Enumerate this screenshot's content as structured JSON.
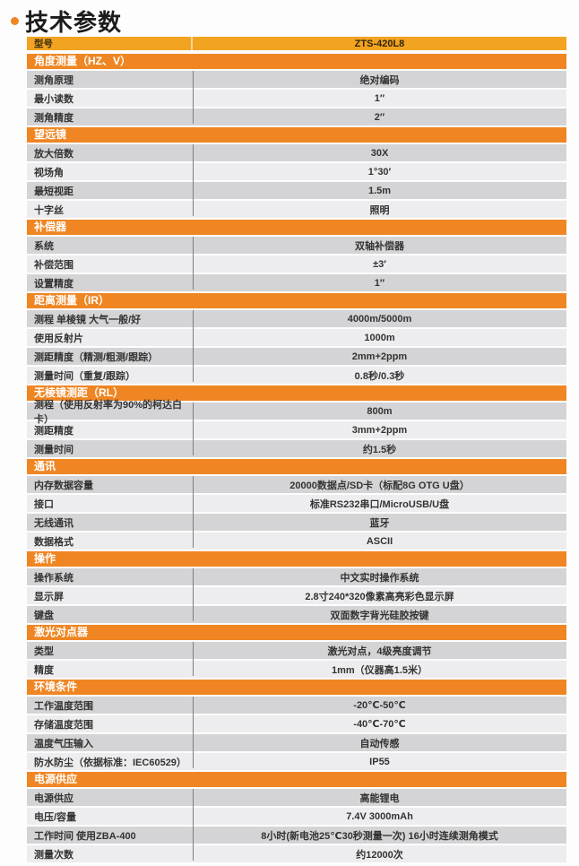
{
  "page": {
    "title": "技术参数"
  },
  "colors": {
    "section_orange": "#EF8623",
    "model_gold": "#F2A320",
    "row_gray": "#D4D4D6",
    "row_light": "#EDEDEF"
  },
  "table": {
    "model_row": {
      "label": "型号",
      "value": "ZTS-420L8"
    },
    "sections": [
      {
        "title": "角度测量（HZ、V）",
        "rows": [
          {
            "label": "测角原理",
            "value": "绝对编码"
          },
          {
            "label": "最小读数",
            "value": "1″"
          },
          {
            "label": "测角精度",
            "value": "2″"
          }
        ]
      },
      {
        "title": "望远镜",
        "rows": [
          {
            "label": "放大倍数",
            "value": "30X"
          },
          {
            "label": "视场角",
            "value": "1°30′"
          },
          {
            "label": "最短视距",
            "value": "1.5m"
          },
          {
            "label": "十字丝",
            "value": "照明"
          }
        ]
      },
      {
        "title": "补偿器",
        "rows": [
          {
            "label": "系统",
            "value": "双轴补偿器"
          },
          {
            "label": "补偿范围",
            "value": "±3′"
          },
          {
            "label": "设置精度",
            "value": "1″"
          }
        ]
      },
      {
        "title": "距离测量（IR）",
        "rows": [
          {
            "label": "测程 单棱镜 大气一般/好",
            "value": "4000m/5000m"
          },
          {
            "label": "使用反射片",
            "value": "1000m"
          },
          {
            "label": "测距精度（精测/粗测/跟踪）",
            "value": "2mm+2ppm"
          },
          {
            "label": "测量时间（重复/跟踪）",
            "value": "0.8秒/0.3秒"
          }
        ]
      },
      {
        "title": "无棱镜测距（RL）",
        "rows": [
          {
            "label": "测程（使用反射率为90%的柯达白卡）",
            "value": "800m"
          },
          {
            "label": "测距精度",
            "value": "3mm+2ppm"
          },
          {
            "label": "测量时间",
            "value": "约1.5秒"
          }
        ]
      },
      {
        "title": "通讯",
        "rows": [
          {
            "label": "内存数据容量",
            "value": "20000数据点/SD卡（标配8G OTG U盘）"
          },
          {
            "label": "接口",
            "value": "标准RS232串口/MicroUSB/U盘"
          },
          {
            "label": "无线通讯",
            "value": "蓝牙"
          },
          {
            "label": "数据格式",
            "value": "ASCII"
          }
        ]
      },
      {
        "title": "操作",
        "rows": [
          {
            "label": "操作系统",
            "value": "中文实时操作系统"
          },
          {
            "label": "显示屏",
            "value": "2.8寸240*320像素高亮彩色显示屏"
          },
          {
            "label": "键盘",
            "value": "双面数字背光硅胶按键"
          }
        ]
      },
      {
        "title": "激光对点器",
        "rows": [
          {
            "label": "类型",
            "value": "激光对点，4级亮度调节"
          },
          {
            "label": "精度",
            "value": "1mm（仪器高1.5米）"
          }
        ]
      },
      {
        "title": "环境条件",
        "rows": [
          {
            "label": "工作温度范围",
            "value": "-20℃-50℃"
          },
          {
            "label": "存储温度范围",
            "value": "-40℃-70℃"
          },
          {
            "label": "温度气压输入",
            "value": "自动传感"
          },
          {
            "label": "防水防尘（依据标准：IEC60529）",
            "value": "IP55"
          }
        ]
      },
      {
        "title": "电源供应",
        "rows": [
          {
            "label": "电源供应",
            "value": "高能锂电"
          },
          {
            "label": "电压/容量",
            "value": "7.4V 3000mAh"
          },
          {
            "label": "工作时间 使用ZBA-400",
            "value": "8小时(新电池25℃30秒测量一次) 16小时连续测角模式"
          },
          {
            "label": "测量次数",
            "value": "约12000次"
          }
        ]
      }
    ]
  }
}
